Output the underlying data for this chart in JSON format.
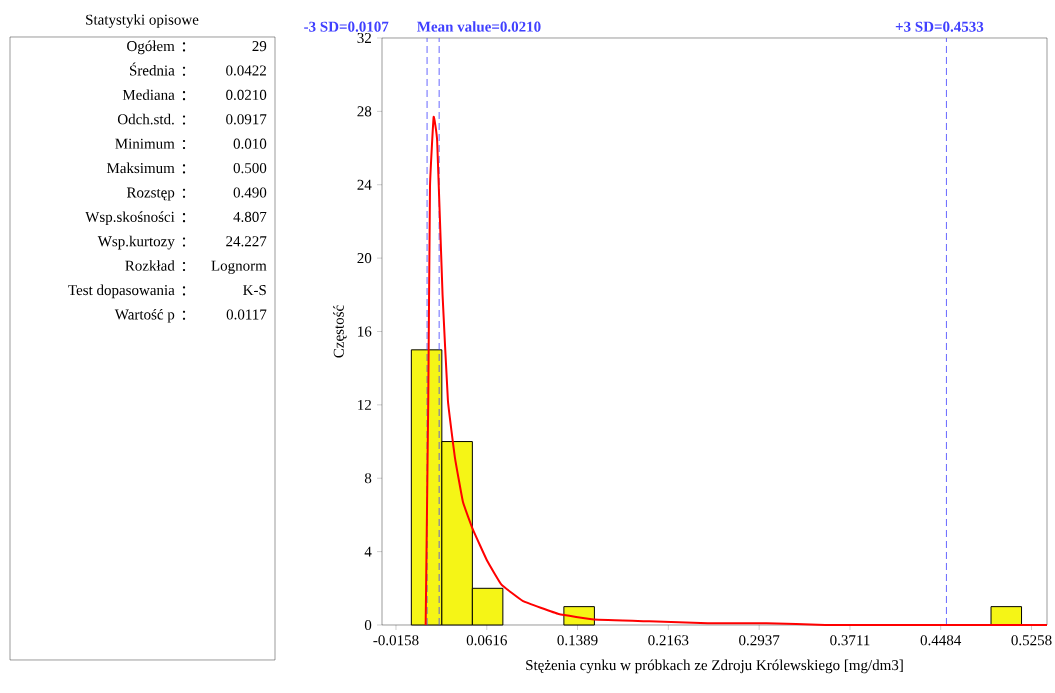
{
  "chart_data": [
    {
      "type": "other",
      "title": "Statystyki opisowe",
      "categories": [
        "Ogółem",
        "Średnia",
        "Mediana",
        "Odch.std.",
        "Minimum",
        "Maksimum",
        "Rozstęp",
        "Wsp.skośności",
        "Wsp.kurtozy",
        "Rozkład",
        "Test dopasowania",
        "Wartość p"
      ],
      "value_labels": [
        "29",
        "0.0422",
        "0.0210",
        "0.0917",
        "0.010",
        "0.500",
        "0.490",
        "4.807",
        "24.227",
        "Lognorm",
        "K-S",
        "0.0117"
      ]
    },
    {
      "type": "histogram",
      "xlabel": "Stężenia cynku w próbkach ze Zdroju Królewskiego [mg/dm3]",
      "ylabel": "Częstość",
      "bins": [
        -0.0027,
        0.0233,
        0.0493,
        0.0753,
        0.1013,
        0.1273,
        0.1533,
        0.1793,
        0.2053,
        0.2313,
        0.2573,
        0.2833,
        0.3093,
        0.3353,
        0.3613,
        0.3873,
        0.4133,
        0.4393,
        0.4653,
        0.4913,
        0.5173
      ],
      "values": [
        15,
        10,
        2,
        0,
        0,
        1,
        0,
        0,
        0,
        0,
        0,
        0,
        0,
        0,
        0,
        0,
        0,
        0,
        0,
        1
      ],
      "color": "#f5f516",
      "series": [
        {
          "type": "line",
          "color": "#ff0000",
          "x": [
            0.0095,
            0.0117,
            0.0132,
            0.0163,
            0.0193,
            0.0239,
            0.0285,
            0.0345,
            0.0413,
            0.0498,
            0.0619,
            0.0741,
            0.0925,
            0.1229,
            0.1531,
            0.2,
            0.25,
            0.3,
            0.35,
            0.45,
            0.539
          ],
          "values": [
            0,
            12.2,
            23.9,
            27.7,
            26.4,
            18.0,
            12.2,
            9.1,
            6.7,
            5.2,
            3.5,
            2.2,
            1.3,
            0.6,
            0.3,
            0.2,
            0.1,
            0.1,
            0.0,
            0.0,
            0.0
          ]
        }
      ],
      "xlim": [
        -0.0277,
        0.539
      ],
      "ylim": [
        0,
        32
      ],
      "xticks": [
        -0.0158,
        0.0616,
        0.1389,
        0.2163,
        0.2937,
        0.3711,
        0.4484,
        0.5258
      ],
      "yticks": [
        0,
        4,
        8,
        12,
        16,
        20,
        24,
        28,
        32
      ],
      "ref_lines": [
        {
          "axis": "x",
          "value": 0.0107,
          "label": "-3 SD=0.0107",
          "color": "#4040ff",
          "line_style": "dashed"
        },
        {
          "axis": "x",
          "value": 0.021,
          "label": "Mean value=0.0210",
          "color": "#4040ff",
          "line_style": "dashed"
        },
        {
          "axis": "x",
          "value": 0.4533,
          "label": "+3 SD=0.4533",
          "color": "#4040ff",
          "line_style": "dashed"
        }
      ],
      "grid": false
    }
  ]
}
